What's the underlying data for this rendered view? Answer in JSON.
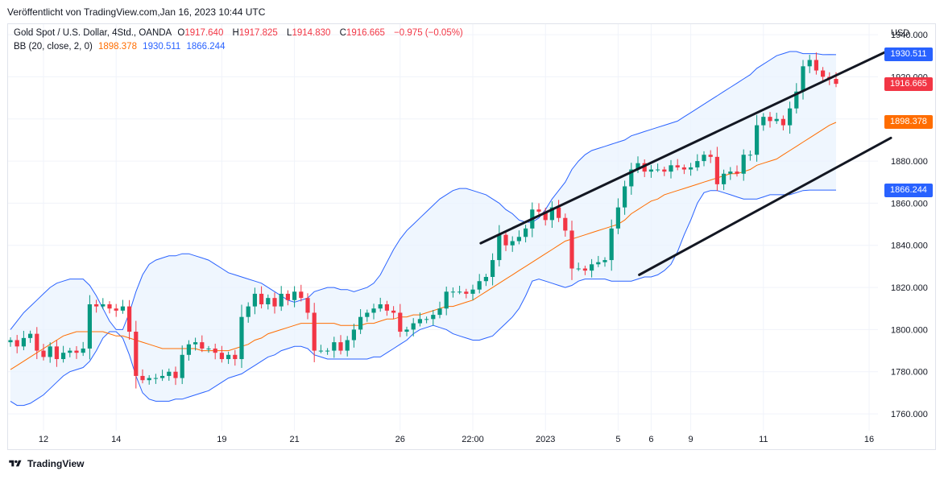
{
  "header": {
    "published": "Veröffentlicht von TradingView.com,Jan 16, 2023 10:44 UTC"
  },
  "legend": {
    "symbol": "Gold Spot / U.S. Dollar, 4Std., OANDA",
    "o_label": "O",
    "o": "1917.640",
    "h_label": "H",
    "h": "1917.825",
    "l_label": "L",
    "l": "1914.830",
    "c_label": "C",
    "c": "1916.665",
    "change": "−0.975 (−0.05%)",
    "bb_label": "BB (20, close, 2, 0)",
    "bb_basis": "1898.378",
    "bb_upper": "1930.511",
    "bb_lower": "1866.244"
  },
  "price_axis": {
    "currency": "USD",
    "labels": [
      "1940.000",
      "1920.000",
      "1900.000",
      "1880.000",
      "1860.000",
      "1840.000",
      "1820.000",
      "1800.000",
      "1780.000",
      "1760.000"
    ],
    "tags": [
      {
        "text": "1930.511",
        "color": "#2962ff",
        "value": 1930.511
      },
      {
        "text": "1916.665",
        "color": "#f23645",
        "value": 1916.665
      },
      {
        "text": "1898.378",
        "color": "#ff6d00",
        "value": 1898.378
      },
      {
        "text": "1866.244",
        "color": "#2962ff",
        "value": 1866.244
      }
    ]
  },
  "time_axis": {
    "labels": [
      {
        "text": "12",
        "i": 5
      },
      {
        "text": "14",
        "i": 16
      },
      {
        "text": "19",
        "i": 32
      },
      {
        "text": "21",
        "i": 43
      },
      {
        "text": "26",
        "i": 59
      },
      {
        "text": "22:00",
        "i": 70
      },
      {
        "text": "2023",
        "i": 81
      },
      {
        "text": "5",
        "i": 92
      },
      {
        "text": "6",
        "i": 97
      },
      {
        "text": "9",
        "i": 103
      },
      {
        "text": "11",
        "i": 114
      },
      {
        "text": "16",
        "i": 130
      }
    ]
  },
  "footer": {
    "brand": "TradingView"
  },
  "chart_data": {
    "type": "candlestick",
    "title": "Gold Spot / U.S. Dollar, 4Std., OANDA",
    "ylim": [
      1752,
      1945
    ],
    "colors": {
      "up": "#089981",
      "down": "#f23645",
      "bb_upper": "#2962ff",
      "bb_lower": "#2962ff",
      "bb_basis": "#ff6d00",
      "bb_fill": "#e8f2fd"
    },
    "close": [
      1795,
      1792,
      1796,
      1798,
      1790,
      1787,
      1792,
      1786,
      1789,
      1790,
      1789,
      1791,
      1812,
      1811,
      1812,
      1810,
      1809,
      1811,
      1799,
      1778,
      1776,
      1777,
      1777,
      1778,
      1780,
      1777,
      1788,
      1793,
      1794,
      1791,
      1791,
      1789,
      1786,
      1788,
      1786,
      1806,
      1811,
      1817,
      1812,
      1815,
      1811,
      1817,
      1814,
      1818,
      1815,
      1808,
      1790,
      1790,
      1790,
      1794,
      1790,
      1795,
      1800,
      1806,
      1808,
      1810,
      1812,
      1809,
      1808,
      1799,
      1800,
      1803,
      1805,
      1805,
      1807,
      1810,
      1818,
      1818,
      1818,
      1817,
      1819,
      1823,
      1825,
      1833,
      1845,
      1840,
      1842,
      1844,
      1848,
      1857,
      1856,
      1852,
      1858,
      1853,
      1847,
      1829,
      1829,
      1828,
      1831,
      1832,
      1833,
      1848,
      1858,
      1868,
      1876,
      1879,
      1875,
      1876,
      1876,
      1875,
      1878,
      1877,
      1876,
      1877,
      1880,
      1883,
      1882,
      1869,
      1874,
      1875,
      1874,
      1883,
      1883,
      1897,
      1901,
      1899,
      1900,
      1897,
      1905,
      1913,
      1925,
      1928,
      1923,
      1920,
      1919,
      1916.665
    ],
    "bb_upper": [
      1800,
      1804,
      1808,
      1811,
      1814,
      1817,
      1820,
      1822,
      1823,
      1824,
      1824,
      1824,
      1821,
      1816,
      1810,
      1804,
      1800,
      1800,
      1808,
      1818,
      1826,
      1831,
      1833,
      1834,
      1835,
      1835,
      1836,
      1836,
      1835,
      1834,
      1833,
      1831,
      1829,
      1827,
      1826,
      1825,
      1824,
      1823,
      1822,
      1820,
      1818,
      1816,
      1814,
      1813,
      1814,
      1815,
      1818,
      1819,
      1820,
      1820,
      1819,
      1819,
      1818,
      1819,
      1820,
      1822,
      1826,
      1832,
      1838,
      1843,
      1847,
      1850,
      1853,
      1856,
      1859,
      1862,
      1864,
      1866,
      1867,
      1867,
      1866,
      1865,
      1864,
      1862,
      1860,
      1857,
      1855,
      1852,
      1851,
      1851,
      1853,
      1857,
      1862,
      1866,
      1870,
      1876,
      1880,
      1883,
      1885,
      1886,
      1887,
      1888,
      1889,
      1890,
      1892,
      1893,
      1894,
      1895,
      1896,
      1897,
      1898,
      1899,
      1901,
      1903,
      1905,
      1907,
      1909,
      1911,
      1913,
      1915,
      1917,
      1919,
      1921,
      1924,
      1926,
      1928,
      1930,
      1931,
      1932,
      1932,
      1931,
      1931,
      1931,
      1930.5,
      1930.6,
      1930.511
    ],
    "bb_basis": [
      1781,
      1783,
      1785,
      1787,
      1789,
      1791,
      1793,
      1795,
      1797,
      1798,
      1799,
      1799,
      1799,
      1799,
      1799,
      1798,
      1797,
      1797,
      1796,
      1795,
      1794,
      1793,
      1792,
      1791,
      1791,
      1791,
      1791,
      1791,
      1791,
      1790,
      1790,
      1790,
      1790,
      1790,
      1791,
      1792,
      1793,
      1795,
      1796,
      1798,
      1799,
      1800,
      1801,
      1802,
      1803,
      1803,
      1803,
      1803,
      1803,
      1803,
      1802,
      1802,
      1802,
      1802,
      1803,
      1803,
      1804,
      1805,
      1805,
      1806,
      1806,
      1807,
      1807,
      1808,
      1809,
      1810,
      1811,
      1811,
      1812,
      1813,
      1814,
      1816,
      1818,
      1820,
      1822,
      1824,
      1826,
      1828,
      1830,
      1832,
      1834,
      1836,
      1838,
      1840,
      1842,
      1843,
      1844,
      1845,
      1846,
      1847,
      1848,
      1849,
      1850,
      1852,
      1855,
      1857,
      1859,
      1861,
      1862,
      1864,
      1865,
      1866,
      1867,
      1868,
      1869,
      1870,
      1871,
      1872,
      1873,
      1874,
      1874,
      1875,
      1876,
      1878,
      1879,
      1880,
      1881,
      1883,
      1885,
      1887,
      1889,
      1891,
      1893,
      1895,
      1897,
      1898.378
    ],
    "bb_lower": [
      1766,
      1764,
      1764,
      1765,
      1767,
      1769,
      1772,
      1775,
      1778,
      1780,
      1781,
      1782,
      1785,
      1790,
      1796,
      1799,
      1799,
      1796,
      1788,
      1778,
      1770,
      1767,
      1766,
      1766,
      1766,
      1767,
      1767,
      1768,
      1769,
      1770,
      1771,
      1773,
      1775,
      1777,
      1778,
      1779,
      1781,
      1783,
      1785,
      1787,
      1788,
      1790,
      1791,
      1792,
      1792,
      1791,
      1788,
      1787,
      1786,
      1786,
      1786,
      1786,
      1786,
      1786,
      1786,
      1787,
      1787,
      1789,
      1791,
      1793,
      1795,
      1798,
      1800,
      1801,
      1802,
      1801,
      1800,
      1798,
      1797,
      1796,
      1795,
      1795,
      1796,
      1797,
      1800,
      1803,
      1806,
      1810,
      1816,
      1823,
      1824,
      1823,
      1822,
      1821,
      1820,
      1821,
      1823,
      1824,
      1824,
      1824,
      1824,
      1823,
      1823,
      1823,
      1823,
      1824,
      1825,
      1825,
      1826,
      1828,
      1831,
      1837,
      1845,
      1852,
      1860,
      1865,
      1866,
      1866,
      1865,
      1864,
      1863,
      1862,
      1862,
      1862,
      1863,
      1864,
      1864,
      1864,
      1864,
      1865,
      1866,
      1866.244,
      1866.244,
      1866.244,
      1866.244,
      1866.244
    ],
    "trendlines": [
      {
        "from": {
          "i": 71.2,
          "y": 1841
        },
        "to": {
          "i": 133.3,
          "y": 1933
        }
      },
      {
        "from": {
          "i": 95.2,
          "y": 1826
        },
        "to": {
          "i": 133.3,
          "y": 1891
        }
      }
    ]
  }
}
